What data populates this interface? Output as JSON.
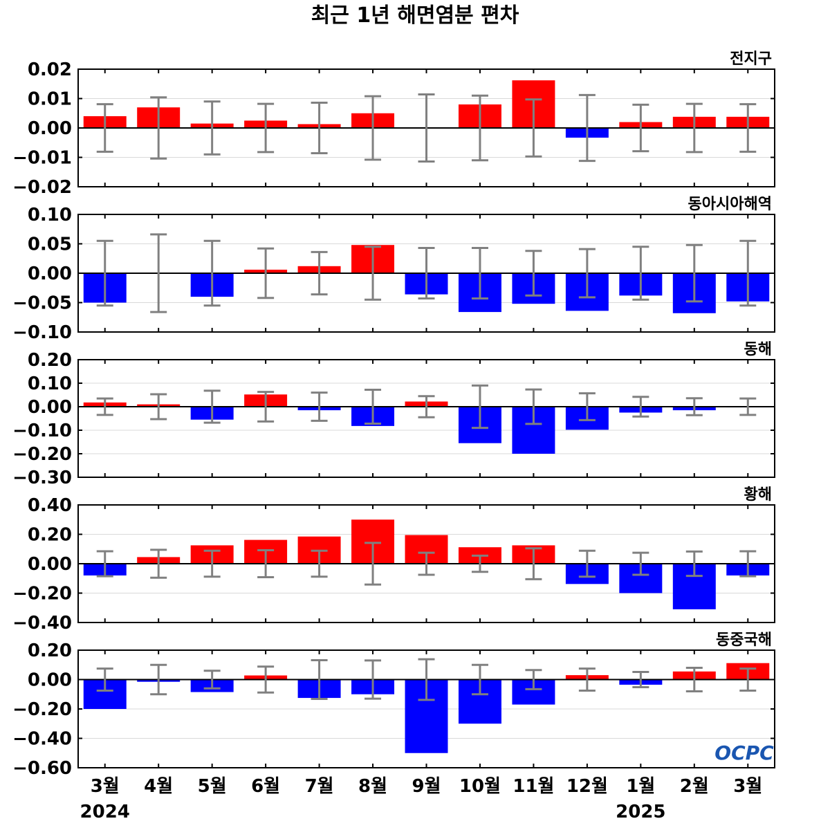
{
  "chart_data": {
    "type": "bar",
    "title": "최근 1년 해면염분 편차",
    "categories": [
      "3월",
      "4월",
      "5월",
      "6월",
      "7월",
      "8월",
      "9월",
      "10월",
      "11월",
      "12월",
      "1월",
      "2월",
      "3월"
    ],
    "year_labels": [
      {
        "index": 0,
        "label": "2024"
      },
      {
        "index": 10,
        "label": "2025"
      }
    ],
    "colors": {
      "positive": "#ff0000",
      "negative": "#0000ff",
      "errorbar": "#808080",
      "grid": "#d9d9d9",
      "zero": "#000000"
    },
    "panels": [
      {
        "name": "전지구",
        "ylim": [
          -0.02,
          0.02
        ],
        "yticks": [
          0.02,
          0.01,
          0.0,
          -0.01,
          -0.02
        ],
        "tick_labels": [
          "0.02",
          "0.01",
          "0.00",
          "−0.01",
          "−0.02"
        ],
        "values": [
          0.004,
          0.007,
          0.0015,
          0.0025,
          0.0013,
          0.005,
          -0.0002,
          0.008,
          0.0162,
          -0.0033,
          0.002,
          0.0038,
          0.0038
        ],
        "errors": [
          0.0081,
          0.0104,
          0.009,
          0.0082,
          0.0086,
          0.0108,
          0.0114,
          0.011,
          0.0097,
          0.0112,
          0.0079,
          0.0082,
          0.0081
        ]
      },
      {
        "name": "동아시아해역",
        "ylim": [
          -0.1,
          0.1
        ],
        "yticks": [
          0.1,
          0.05,
          0.0,
          -0.05,
          -0.1
        ],
        "tick_labels": [
          "0.10",
          "0.05",
          "0.00",
          "−0.05",
          "−0.10"
        ],
        "values": [
          -0.05,
          0.001,
          -0.04,
          0.006,
          0.012,
          0.048,
          -0.036,
          -0.066,
          -0.052,
          -0.064,
          -0.038,
          -0.068,
          -0.048
        ],
        "errors": [
          0.055,
          0.066,
          0.055,
          0.042,
          0.036,
          0.045,
          0.043,
          0.043,
          0.038,
          0.041,
          0.045,
          0.048,
          0.055
        ]
      },
      {
        "name": "동해",
        "ylim": [
          -0.3,
          0.2
        ],
        "yticks": [
          0.2,
          0.1,
          0.0,
          -0.1,
          -0.2,
          -0.3
        ],
        "tick_labels": [
          "0.20",
          "0.10",
          "0.00",
          "−0.10",
          "−0.20",
          "−0.30"
        ],
        "values": [
          0.018,
          0.01,
          -0.055,
          0.052,
          -0.015,
          -0.082,
          0.022,
          -0.155,
          -0.2,
          -0.098,
          -0.025,
          -0.015,
          -0.003
        ],
        "errors": [
          0.035,
          0.053,
          0.068,
          0.063,
          0.06,
          0.072,
          0.045,
          0.09,
          0.073,
          0.057,
          0.042,
          0.036,
          0.035
        ]
      },
      {
        "name": "황해",
        "ylim": [
          -0.4,
          0.4
        ],
        "yticks": [
          0.4,
          0.2,
          0.0,
          -0.2,
          -0.4
        ],
        "tick_labels": [
          "0.40",
          "0.20",
          "0.00",
          "−0.20",
          "−0.40"
        ],
        "values": [
          -0.08,
          0.045,
          0.125,
          0.162,
          0.185,
          0.3,
          0.195,
          0.112,
          0.125,
          -0.138,
          -0.2,
          -0.31,
          -0.08
        ],
        "errors": [
          0.085,
          0.095,
          0.088,
          0.092,
          0.088,
          0.142,
          0.075,
          0.055,
          0.105,
          0.088,
          0.075,
          0.083,
          0.085
        ]
      },
      {
        "name": "동중국해",
        "ylim": [
          -0.6,
          0.2
        ],
        "yticks": [
          0.2,
          0.0,
          -0.2,
          -0.4,
          -0.6
        ],
        "tick_labels": [
          "0.20",
          "0.00",
          "−0.20",
          "−0.40",
          "−0.60"
        ],
        "values": [
          -0.2,
          -0.015,
          -0.085,
          0.028,
          -0.125,
          -0.1,
          -0.5,
          -0.3,
          -0.17,
          0.03,
          -0.035,
          0.055,
          0.112
        ],
        "errors": [
          0.075,
          0.1,
          0.06,
          0.088,
          0.132,
          0.13,
          0.138,
          0.1,
          0.065,
          0.075,
          0.052,
          0.08,
          0.075
        ]
      }
    ],
    "grid": true,
    "legend": "none"
  },
  "logo_text": "OCPC"
}
